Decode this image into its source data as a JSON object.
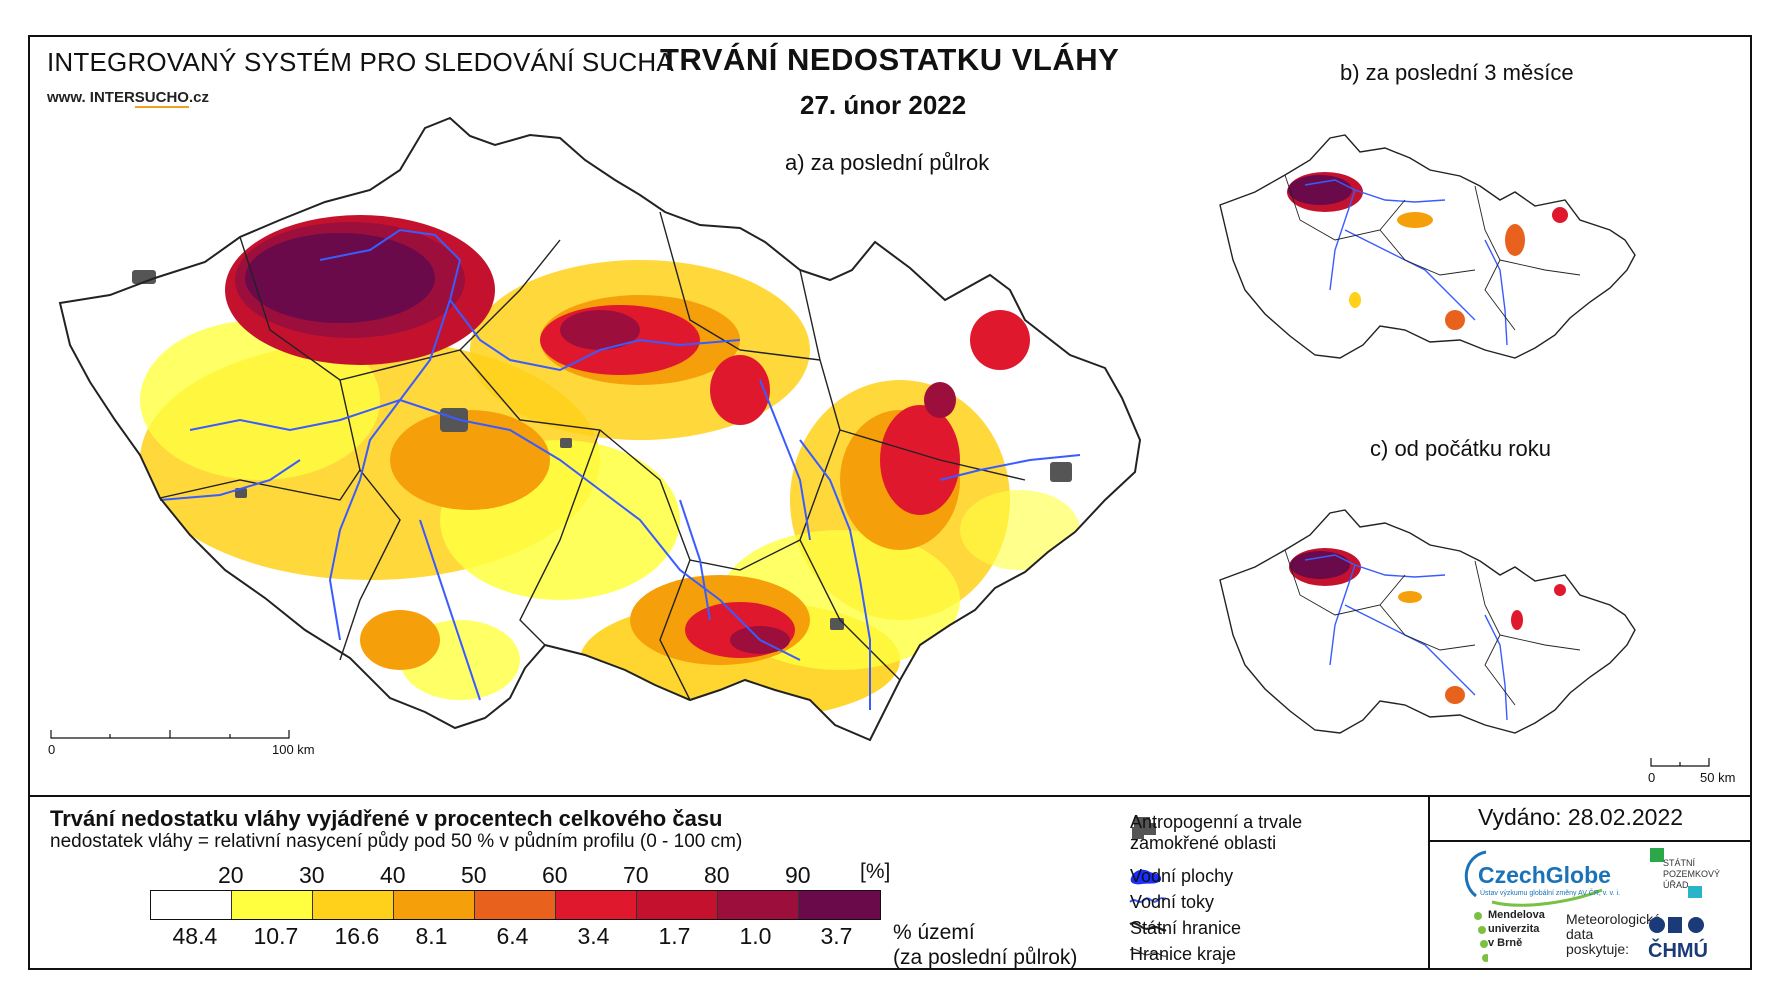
{
  "header": {
    "system_title": "INTEGROVANÝ SYSTÉM PRO SLEDOVÁNÍ SUCHA",
    "url_prefix": "www. INTER",
    "url_highlight": "SUCHO",
    "url_suffix": ".cz",
    "main_title": "TRVÁNÍ NEDOSTATKU VLÁHY",
    "date": "27. únor 2022"
  },
  "panels": {
    "a_label": "a) za poslední půlrok",
    "b_label": "b) za poslední 3 měsíce",
    "c_label": "c) od počátku roku"
  },
  "scalebars": {
    "main_start": "0",
    "main_end": "100 km",
    "small_start": "0",
    "small_end": "50 km"
  },
  "legend": {
    "title": "Trvání nedostatku vláhy vyjádřené v procentech celkového času",
    "subtitle": "nedostatek vláhy = relativní nasycení půdy pod 50 % v půdním profilu (0 - 100 cm)",
    "unit": "[%]",
    "thresholds": [
      "20",
      "30",
      "40",
      "50",
      "60",
      "70",
      "80",
      "90"
    ],
    "colors": [
      "#ffffff",
      "#ffff40",
      "#ffd11a",
      "#f5a00a",
      "#e8621e",
      "#e0182e",
      "#c4122e",
      "#9c0f3c",
      "#6a0a4a"
    ],
    "area_percent": [
      "48.4",
      "10.7",
      "16.6",
      "8.1",
      "6.4",
      "3.4",
      "1.7",
      "1.0",
      "3.7"
    ],
    "area_label_line1": "% území",
    "area_label_line2": "(za poslední půlrok)"
  },
  "symbols": {
    "anthropogenic_line1": "Antropogenní a trvale",
    "anthropogenic_line2": "zamokřené oblasti",
    "water_bodies": "Vodní plochy",
    "rivers": "Vodní toky",
    "state_border": "Státní hranice",
    "region_border": "Hranice kraje"
  },
  "credits": {
    "issued": "Vydáno: 28.02.2022",
    "czechglobe": "CzechGlobe",
    "czechglobe_sub": "Ústav výzkumu globální změny AV ČR, v. v. i.",
    "spu_line1": "STÁTNÍ",
    "spu_line2": "POZEMKOVÝ",
    "spu_line3": "ÚŘAD",
    "mendel_line1": "Mendelova",
    "mendel_line2": "univerzita",
    "mendel_line3": "v Brně",
    "meteo_line1": "Meteorologická",
    "meteo_line2": "data",
    "meteo_line3": "poskytuje:",
    "chmu": "ČHMÚ"
  },
  "colors": {
    "river": "#3a5cff",
    "anthropogenic": "#555555",
    "czechglobe_blue": "#1a73b8",
    "spu_green": "#2aa84a",
    "mendel_green": "#7ac143",
    "chmu_blue": "#1b3a78"
  }
}
